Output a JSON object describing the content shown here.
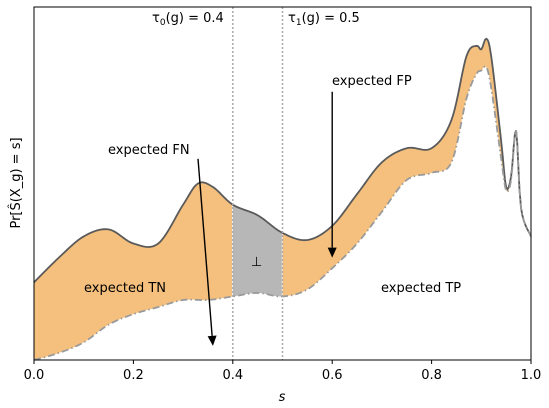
{
  "chart_data": {
    "type": "area",
    "xlabel": "s",
    "ylabel": "Pr[Ŝ(X_g) = s]",
    "xlim": [
      0.0,
      1.0
    ],
    "ylim": [
      0.0,
      1.0
    ],
    "x_ticks": [
      "0.0",
      "0.2",
      "0.4",
      "0.6",
      "0.8",
      "1.0"
    ],
    "x_tick_values": [
      0.0,
      0.2,
      0.4,
      0.6,
      0.8,
      1.0
    ],
    "y_ticks": [],
    "grid": false,
    "thresholds": [
      {
        "name": "tau0",
        "value": 0.4,
        "label_symbol": "τ",
        "label_sub": "0",
        "label_rest": "(g) = 0.4"
      },
      {
        "name": "tau1",
        "value": 0.5,
        "label_symbol": "τ",
        "label_sub": "1",
        "label_rest": "(g) = 0.5"
      }
    ],
    "series": [
      {
        "style": "solid",
        "color": "#5a5a5a",
        "x": [
          0.0,
          0.05,
          0.1,
          0.15,
          0.2,
          0.25,
          0.3,
          0.33,
          0.36,
          0.4,
          0.45,
          0.5,
          0.55,
          0.6,
          0.65,
          0.7,
          0.75,
          0.8,
          0.84,
          0.87,
          0.89,
          0.9,
          0.91,
          0.92,
          0.94,
          0.95,
          0.96,
          0.97,
          0.98,
          1.0
        ],
        "values": [
          0.22,
          0.29,
          0.35,
          0.37,
          0.33,
          0.33,
          0.44,
          0.5,
          0.49,
          0.44,
          0.41,
          0.36,
          0.34,
          0.38,
          0.47,
          0.56,
          0.6,
          0.6,
          0.68,
          0.86,
          0.89,
          0.88,
          0.91,
          0.86,
          0.62,
          0.49,
          0.52,
          0.65,
          0.43,
          0.35
        ]
      },
      {
        "style": "dashdot",
        "color": "#9a9a9a",
        "x": [
          0.0,
          0.05,
          0.1,
          0.15,
          0.2,
          0.25,
          0.3,
          0.35,
          0.4,
          0.45,
          0.5,
          0.55,
          0.6,
          0.65,
          0.7,
          0.75,
          0.8,
          0.84,
          0.87,
          0.89,
          0.9,
          0.91,
          0.92,
          0.94,
          0.95,
          0.96,
          0.97,
          0.98,
          1.0
        ],
        "values": [
          0.0,
          0.02,
          0.05,
          0.1,
          0.13,
          0.15,
          0.17,
          0.17,
          0.18,
          0.19,
          0.18,
          0.2,
          0.26,
          0.33,
          0.42,
          0.51,
          0.53,
          0.56,
          0.74,
          0.81,
          0.82,
          0.83,
          0.77,
          0.57,
          0.48,
          0.51,
          0.65,
          0.43,
          0.35
        ]
      }
    ],
    "fill_color": "#f5c07e",
    "reject_fill_color": "#b7b7b7",
    "region_labels": {
      "expected_fn": "expected FN",
      "expected_fp": "expected FP",
      "expected_tn": "expected TN",
      "expected_tp": "expected TP",
      "reject": "⊥"
    },
    "arrows": [
      {
        "name": "fn",
        "from": [
          0.33,
          0.57
        ],
        "to": [
          0.36,
          0.04
        ]
      },
      {
        "name": "fp",
        "from": [
          0.6,
          0.76
        ],
        "to": [
          0.6,
          0.29
        ]
      }
    ]
  }
}
